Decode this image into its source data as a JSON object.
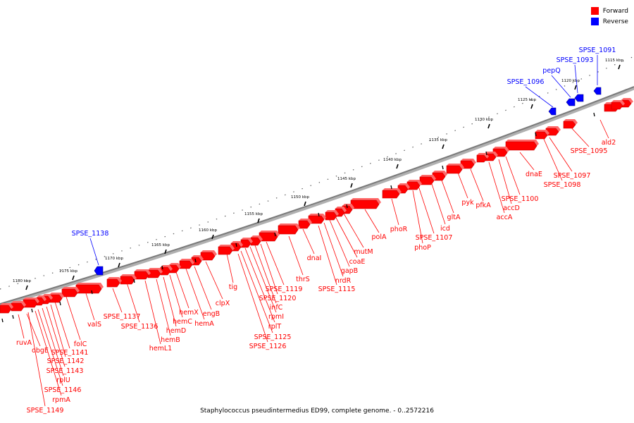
{
  "caption": "Staphylococcus pseudintermedius ED99, complete genome. - 0..2572216",
  "legend": [
    {
      "label": "Forward",
      "color": "#ff0000"
    },
    {
      "label": "Reverse",
      "color": "#0000ff"
    }
  ],
  "colors": {
    "forward": "#ff0000",
    "reverse": "#0000ff",
    "backbone": "#808080"
  },
  "ticks": [
    {
      "label": "1115 kbp",
      "bp": 1115000
    },
    {
      "label": "1120 kbp",
      "bp": 1120000
    },
    {
      "label": "1125 kbp",
      "bp": 1125000
    },
    {
      "label": "1130 kbp",
      "bp": 1130000
    },
    {
      "label": "1135 kbp",
      "bp": 1135000
    },
    {
      "label": "1140 kbp",
      "bp": 1140000
    },
    {
      "label": "1145 kbp",
      "bp": 1145000
    },
    {
      "label": "1150 kbp",
      "bp": 1150000
    },
    {
      "label": "1155 kbp",
      "bp": 1155000
    },
    {
      "label": "1160 kbp",
      "bp": 1160000
    },
    {
      "label": "1165 kbp",
      "bp": 1165000
    },
    {
      "label": "1170 kbp",
      "bp": 1170000
    },
    {
      "label": "1175 kbp",
      "bp": 1175000
    },
    {
      "label": "1180 kbp",
      "bp": 1180000
    }
  ],
  "genes_reverse": [
    "SPSE_1091",
    "SPSE_1093",
    "pepQ",
    "SPSE_1096",
    "SPSE_1138"
  ],
  "genes_forward": [
    "ald2",
    "SPSE_1095",
    "SPSE_1097",
    "SPSE_1098",
    "dnaE",
    "SPSE_1100",
    "accD",
    "accA",
    "pfkA",
    "pyk",
    "gltA",
    "icd",
    "SPSE_1107",
    "phoP",
    "phoR",
    "polA",
    "mutM",
    "coaE",
    "gapB",
    "nrdR",
    "SPSE_1115",
    "dnaI",
    "thrS",
    "SPSE_1119",
    "SPSE_1120",
    "infC",
    "rpmI",
    "rplT",
    "SPSE_1125",
    "SPSE_1126",
    "tig",
    "clpX",
    "engB",
    "hemA",
    "hemX",
    "hemC",
    "hemD",
    "hemB",
    "hemL1",
    "SPSE_1136",
    "SPSE_1137",
    "valS",
    "folC",
    "SPSE_1141",
    "SPSE_1142",
    "SPSE_1143",
    "rplU",
    "SPSE_1146",
    "rpmA",
    "SPSE_1149",
    "obgE",
    "ruvA"
  ]
}
